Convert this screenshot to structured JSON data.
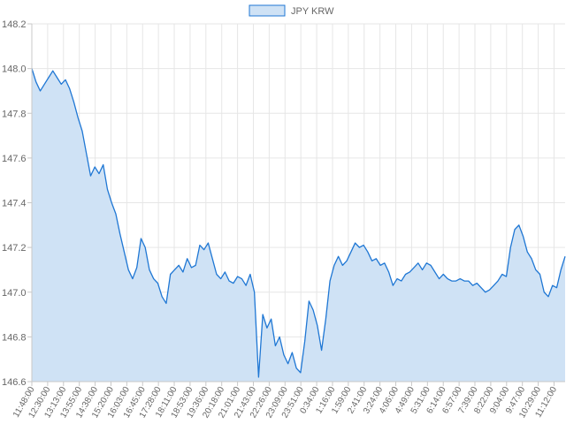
{
  "chart_data": {
    "type": "area",
    "legend": {
      "position": "top",
      "entries": [
        "JPY KRW"
      ]
    },
    "grid": true,
    "colors": {
      "line": "#1f77d4",
      "fill": "#cfe2f5",
      "grid": "#e6e6e6",
      "axis": "#c8c8c8",
      "text": "#666666"
    },
    "ylim": [
      146.6,
      148.2
    ],
    "yticks": [
      "146.6",
      "146.8",
      "147.0",
      "147.2",
      "147.4",
      "147.6",
      "147.8",
      "148.0",
      "148.2"
    ],
    "xticks": [
      "11:48:00",
      "12:30:00",
      "13:13:00",
      "13:55:00",
      "14:38:00",
      "15:20:00",
      "16:03:00",
      "16:45:00",
      "17:28:00",
      "18:11:00",
      "18:53:00",
      "19:36:00",
      "20:18:00",
      "21:01:00",
      "21:43:00",
      "22:26:00",
      "23:09:00",
      "23:51:00",
      "0:34:00",
      "1:16:00",
      "1:59:00",
      "2:41:00",
      "3:24:00",
      "4:06:00",
      "4:49:00",
      "5:31:00",
      "6:14:00",
      "6:57:00",
      "7:39:00",
      "8:22:00",
      "9:04:00",
      "9:47:00",
      "10:29:00",
      "11:12:00"
    ],
    "series": [
      {
        "name": "JPY KRW",
        "x_range": [
          "11:48:00",
          "11:54:00"
        ],
        "values": [
          148.0,
          147.94,
          147.9,
          147.93,
          147.96,
          147.99,
          147.96,
          147.93,
          147.95,
          147.91,
          147.85,
          147.78,
          147.72,
          147.62,
          147.52,
          147.56,
          147.53,
          147.57,
          147.46,
          147.4,
          147.35,
          147.26,
          147.18,
          147.1,
          147.06,
          147.11,
          147.24,
          147.2,
          147.1,
          147.06,
          147.04,
          146.98,
          146.95,
          147.08,
          147.1,
          147.12,
          147.09,
          147.15,
          147.11,
          147.12,
          147.21,
          147.19,
          147.22,
          147.15,
          147.08,
          147.06,
          147.09,
          147.05,
          147.04,
          147.07,
          147.06,
          147.03,
          147.08,
          147.0,
          146.62,
          146.9,
          146.84,
          146.88,
          146.76,
          146.8,
          146.72,
          146.68,
          146.73,
          146.66,
          146.64,
          146.78,
          146.96,
          146.92,
          146.85,
          146.74,
          146.88,
          147.05,
          147.12,
          147.16,
          147.12,
          147.14,
          147.18,
          147.22,
          147.2,
          147.21,
          147.18,
          147.14,
          147.15,
          147.12,
          147.13,
          147.09,
          147.03,
          147.06,
          147.05,
          147.08,
          147.09,
          147.11,
          147.13,
          147.1,
          147.13,
          147.12,
          147.09,
          147.06,
          147.08,
          147.06,
          147.05,
          147.05,
          147.06,
          147.05,
          147.05,
          147.03,
          147.04,
          147.02,
          147.0,
          147.01,
          147.03,
          147.05,
          147.08,
          147.07,
          147.2,
          147.28,
          147.3,
          147.25,
          147.18,
          147.15,
          147.1,
          147.08,
          147.0,
          146.98,
          147.03,
          147.02,
          147.1,
          147.16
        ]
      }
    ]
  }
}
